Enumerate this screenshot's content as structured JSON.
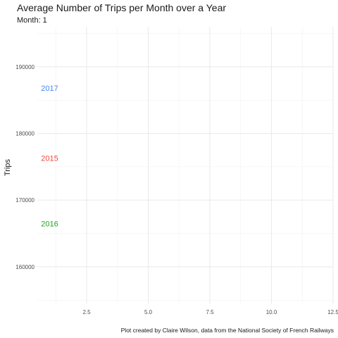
{
  "chart_data": {
    "type": "scatter",
    "title": "Average Number of Trips per Month over a Year",
    "subtitle": "Month: 1",
    "xlabel": "",
    "ylabel": "Trips",
    "caption": "Plot created by Claire Wilson, data from the National Society of French Railways",
    "xlim": [
      0.5,
      12.5
    ],
    "ylim": [
      154500,
      196000
    ],
    "x_ticks": [
      2.5,
      5.0,
      7.5,
      10.0,
      12.5
    ],
    "x_tick_labels": [
      "2.5",
      "5.0",
      "7.5",
      "10.0",
      "12.5"
    ],
    "y_ticks": [
      160000,
      170000,
      180000,
      190000
    ],
    "y_tick_labels": [
      "160000",
      "170000",
      "180000",
      "190000"
    ],
    "grid": true,
    "legend": "none",
    "series": [
      {
        "name": "2017",
        "color": "#4a86e8",
        "x": [
          1
        ],
        "y": [
          186800
        ]
      },
      {
        "name": "2015",
        "color": "#ee4b3e",
        "x": [
          1
        ],
        "y": [
          176300
        ]
      },
      {
        "name": "2016",
        "color": "#1fa71f",
        "x": [
          1
        ],
        "y": [
          166500
        ]
      }
    ]
  }
}
